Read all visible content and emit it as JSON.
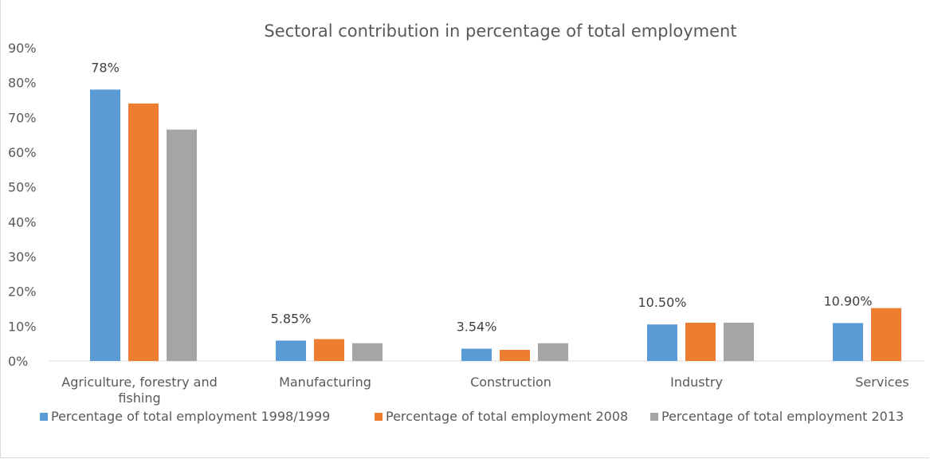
{
  "chart_data": {
    "type": "bar",
    "title": "Sectoral contribution in percentage of total employment",
    "categories": [
      [
        "Agriculture, forestry and",
        "fishing"
      ],
      [
        "Manufacturing"
      ],
      [
        "Construction"
      ],
      [
        "Industry"
      ],
      [
        "Services"
      ]
    ],
    "series": [
      {
        "name": "Percentage of total employment 1998/1999",
        "color": "#5B9BD5",
        "values": [
          78,
          5.85,
          3.54,
          10.5,
          10.9
        ],
        "labels": [
          "78%",
          "5.85%",
          "3.54%",
          "10.50%",
          "10.90%"
        ]
      },
      {
        "name": "Percentage of total employment 2008",
        "color": "#ED7D31",
        "values": [
          74,
          6.3,
          3.2,
          11,
          15.2
        ]
      },
      {
        "name": "Percentage of total employment 2013",
        "color": "#A5A5A5",
        "values": [
          66.5,
          5.1,
          5.1,
          11,
          null
        ]
      }
    ],
    "yticks": [
      "0%",
      "10%",
      "20%",
      "30%",
      "40%",
      "50%",
      "60%",
      "70%",
      "80%",
      "90%"
    ],
    "ylim": [
      0,
      90
    ],
    "grid": false,
    "legend_position": "bottom"
  }
}
